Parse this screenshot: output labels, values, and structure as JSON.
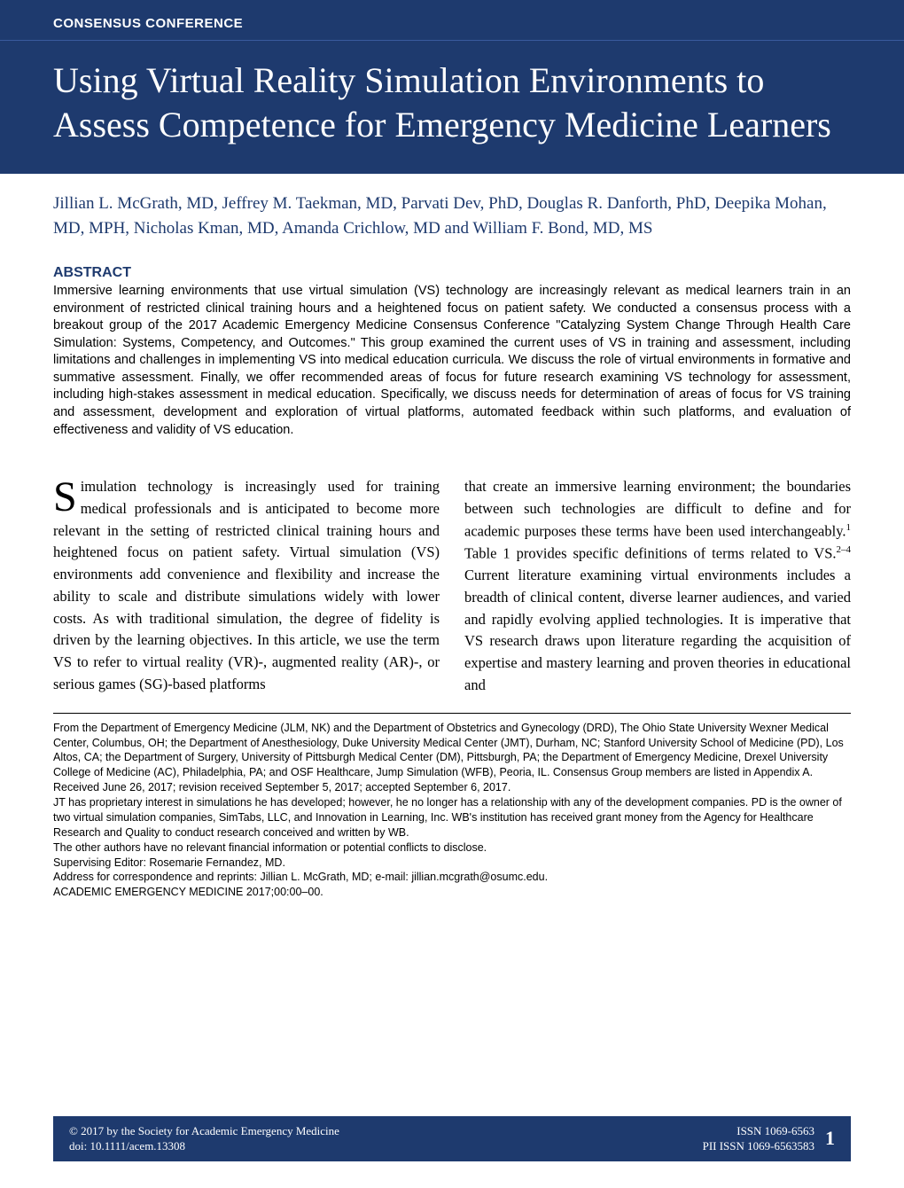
{
  "colors": {
    "banner_bg": "#1e3a6e",
    "banner_text": "#ffffff",
    "accent": "#1e3a6e",
    "body_text": "#000000",
    "page_bg": "#ffffff"
  },
  "typography": {
    "title_fontsize": 40,
    "authors_fontsize": 19,
    "abstract_fontsize": 14.5,
    "body_fontsize": 16.5,
    "footnote_fontsize": 12.5,
    "serif_family": "Georgia",
    "sans_family": "Arial"
  },
  "header": {
    "section_label": "CONSENSUS CONFERENCE",
    "title": "Using Virtual Reality Simulation Environments to Assess Competence for Emergency Medicine Learners"
  },
  "authors": "Jillian L. McGrath, MD, Jeffrey M. Taekman, MD, Parvati Dev, PhD, Douglas R. Danforth, PhD, Deepika Mohan, MD, MPH, Nicholas Kman, MD, Amanda Crichlow, MD and William F. Bond, MD, MS",
  "abstract": {
    "heading": "ABSTRACT",
    "text": "Immersive learning environments that use virtual simulation (VS) technology are increasingly relevant as medical learners train in an environment of restricted clinical training hours and a heightened focus on patient safety. We conducted a consensus process with a breakout group of the 2017 Academic Emergency Medicine Consensus Conference \"Catalyzing System Change Through Health Care Simulation: Systems, Competency, and Outcomes.\" This group examined the current uses of VS in training and assessment, including limitations and challenges in implementing VS into medical education curricula. We discuss the role of virtual environments in formative and summative assessment. Finally, we offer recommended areas of focus for future research examining VS technology for assessment, including high-stakes assessment in medical education. Specifically, we discuss needs for determination of areas of focus for VS training and assessment, development and exploration of virtual platforms, automated feedback within such platforms, and evaluation of effectiveness and validity of VS education."
  },
  "body": {
    "drop_cap": "S",
    "col1": "imulation technology is increasingly used for training medical professionals and is anticipated to become more relevant in the setting of restricted clinical training hours and heightened focus on patient safety. Virtual simulation (VS) environments add convenience and flexibility and increase the ability to scale and distribute simulations widely with lower costs. As with traditional simulation, the degree of fidelity is driven by the learning objectives. In this article, we use the term VS to refer to virtual reality (VR)-, augmented reality (AR)-, or serious games (SG)-based platforms",
    "col2_pre": "that create an immersive learning environment; the boundaries between such technologies are difficult to define and for academic purposes these terms have been used interchangeably.",
    "col2_sup1": "1",
    "col2_mid": " Table 1 provides specific definitions of terms related to VS.",
    "col2_sup2": "2–4",
    "col2_post": " Current literature examining virtual environments includes a breadth of clinical content, diverse learner audiences, and varied and rapidly evolving applied technologies. It is imperative that VS research draws upon literature regarding the acquisition of expertise and mastery learning and proven theories in educational and"
  },
  "footnotes": {
    "affiliations": "From the Department of Emergency Medicine (JLM, NK) and the Department of Obstetrics and Gynecology (DRD), The Ohio State University Wexner Medical Center, Columbus, OH; the Department of Anesthesiology, Duke University Medical Center (JMT), Durham, NC; Stanford University School of Medicine (PD), Los Altos, CA; the Department of Surgery, University of Pittsburgh Medical Center (DM), Pittsburgh, PA; the Department of Emergency Medicine, Drexel University College of Medicine (AC), Philadelphia, PA; and OSF Healthcare, Jump Simulation (WFB), Peoria, IL. Consensus Group members are listed in Appendix A.",
    "received": "Received June 26, 2017; revision received September 5, 2017; accepted September 6, 2017.",
    "coi": "JT has proprietary interest in simulations he has developed; however, he no longer has a relationship with any of the development companies. PD is the owner of two virtual simulation companies, SimTabs, LLC, and Innovation in Learning, Inc. WB's institution has received grant money from the Agency for Healthcare Research and Quality to conduct research conceived and written by WB.",
    "other_coi": "The other authors have no relevant financial information or potential conflicts to disclose.",
    "editor": "Supervising Editor: Rosemarie Fernandez, MD.",
    "correspondence": "Address for correspondence and reprints: Jillian L. McGrath, MD; e-mail: jillian.mcgrath@osumc.edu.",
    "citation": "ACADEMIC EMERGENCY MEDICINE 2017;00:00–00."
  },
  "footer": {
    "copyright": "© 2017 by the Society for Academic Emergency Medicine",
    "doi": "doi: 10.1111/acem.13308",
    "issn": "ISSN 1069-6563",
    "pii": "PII ISSN 1069-6563583",
    "page": "1"
  }
}
